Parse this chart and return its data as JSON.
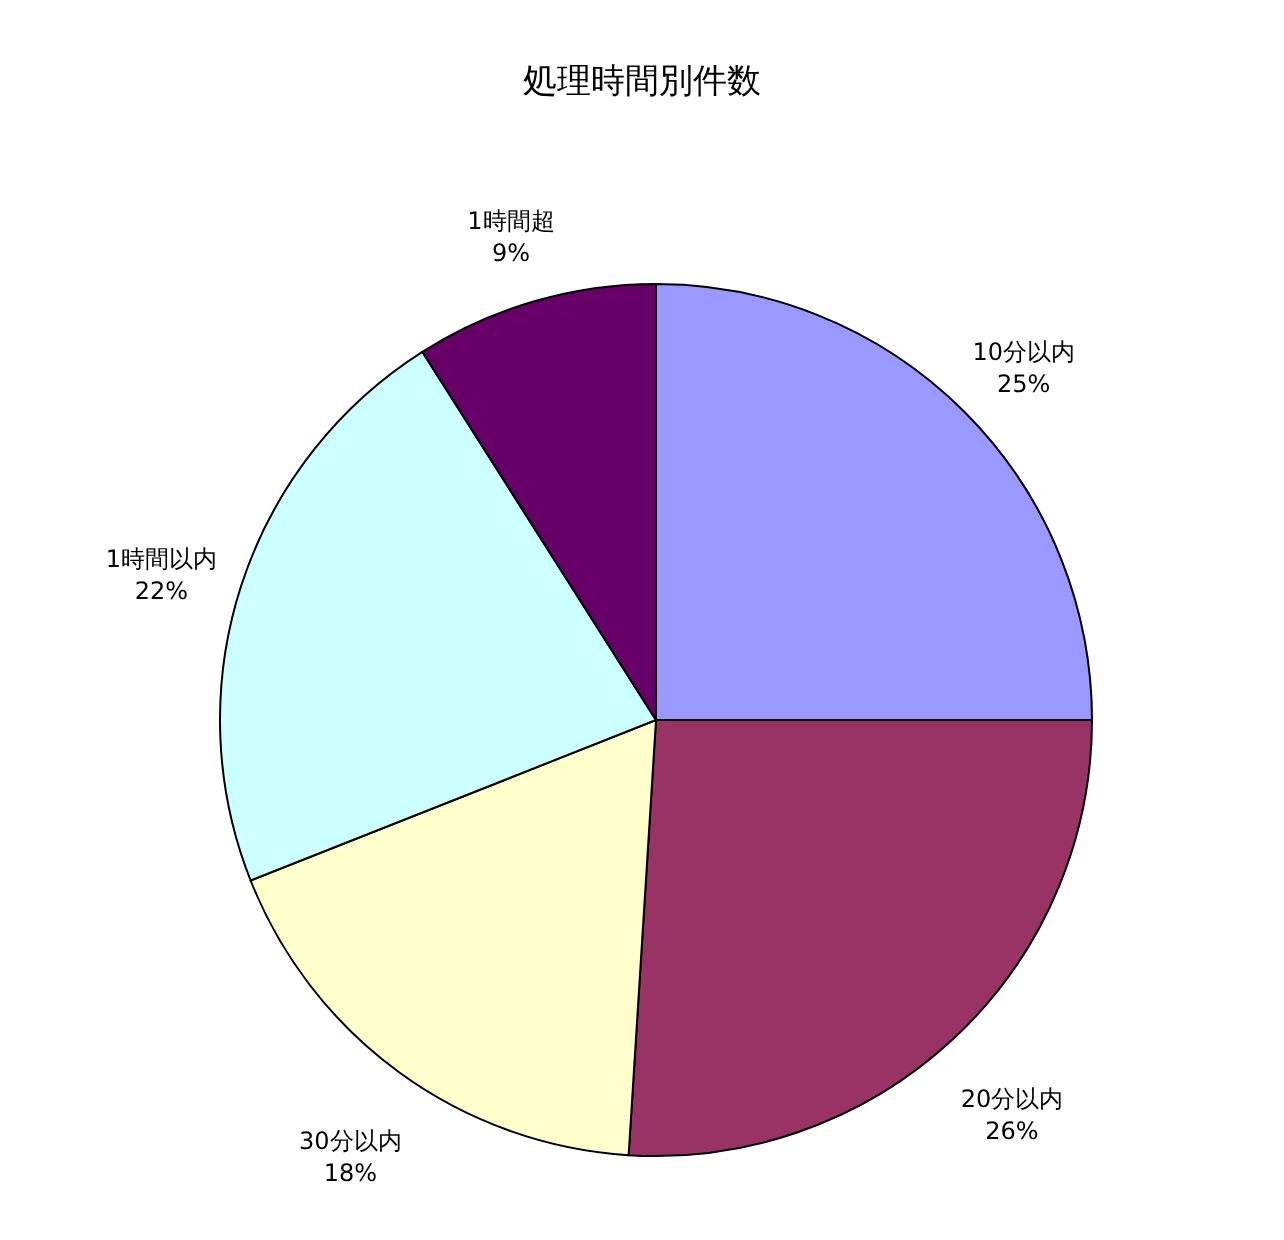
{
  "chart_data": {
    "type": "pie",
    "title": "処理時間別件数",
    "categories": [
      "10分以内",
      "20分以内",
      "30分以内",
      "1時間以内",
      "1時間超"
    ],
    "values": [
      25,
      26,
      18,
      22,
      9
    ],
    "value_labels": [
      "25%",
      "26%",
      "18%",
      "22%",
      "9%"
    ],
    "colors": [
      "#9999ff",
      "#993366",
      "#ffffcc",
      "#ccffff",
      "#660066"
    ],
    "legend": false
  }
}
